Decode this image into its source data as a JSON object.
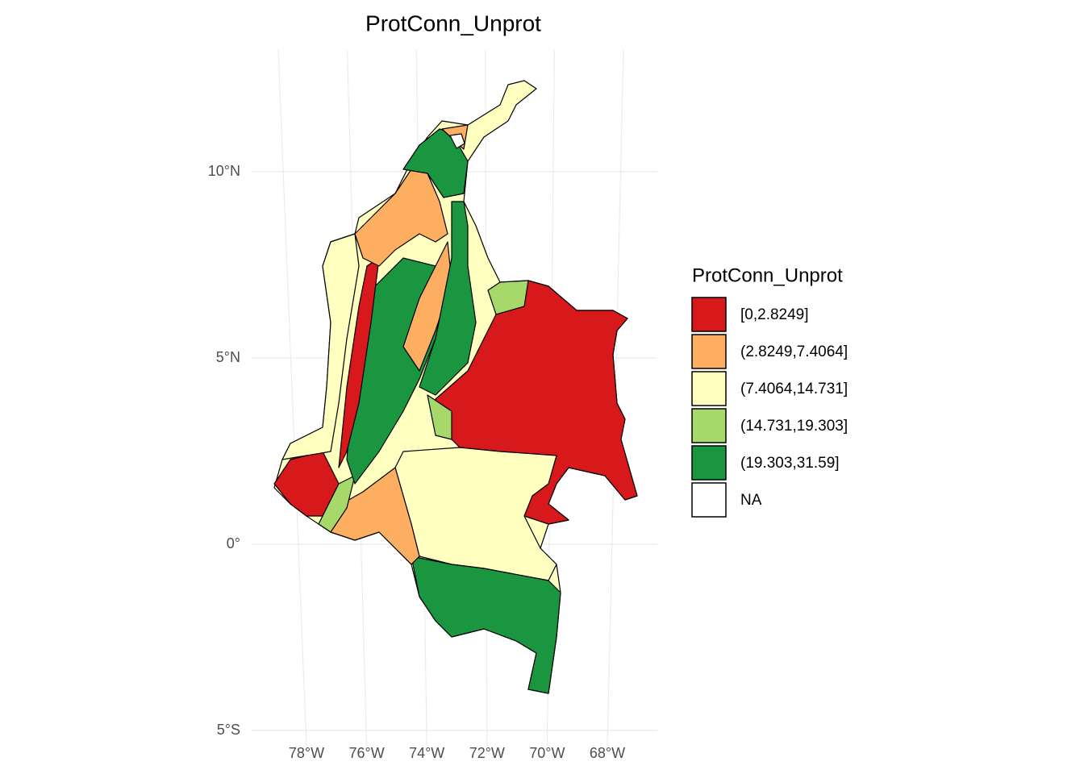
{
  "title": "ProtConn_Unprot",
  "legend": {
    "title": "ProtConn_Unprot",
    "items": [
      {
        "label": "[0,2.8249]",
        "color": "#d7191c"
      },
      {
        "label": "(2.8249,7.4064]",
        "color": "#fdae61"
      },
      {
        "label": "(7.4064,14.731]",
        "color": "#ffffbf"
      },
      {
        "label": "(14.731,19.303]",
        "color": "#a6d96a"
      },
      {
        "label": "(19.303,31.59]",
        "color": "#1a9641"
      },
      {
        "label": "NA",
        "color": "#ffffff"
      }
    ]
  },
  "axes": {
    "y_ticks": [
      {
        "value": 10,
        "label": "10°N"
      },
      {
        "value": 5,
        "label": "5°N"
      },
      {
        "value": 0,
        "label": "0°"
      },
      {
        "value": -5,
        "label": "5°S"
      }
    ],
    "x_ticks": [
      {
        "value": -78,
        "label": "78°W"
      },
      {
        "value": -76,
        "label": "76°W"
      },
      {
        "value": -74,
        "label": "74°W"
      },
      {
        "value": -72,
        "label": "72°W"
      },
      {
        "value": -70,
        "label": "70°W"
      },
      {
        "value": -68,
        "label": "68°W"
      }
    ]
  }
}
